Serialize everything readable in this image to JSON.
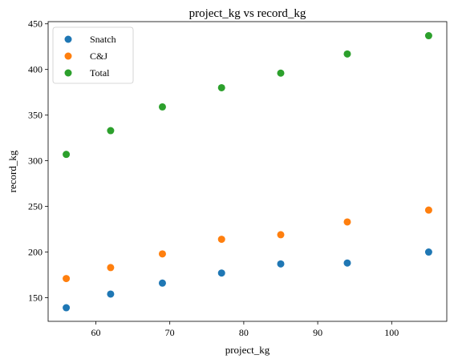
{
  "chart_data": {
    "type": "scatter",
    "title": "project_kg vs record_kg",
    "xlabel": "project_kg",
    "ylabel": "record_kg",
    "xlim": [
      53.55,
      107.45
    ],
    "ylim": [
      124.1,
      452.4
    ],
    "xticks": [
      60,
      70,
      80,
      90,
      100
    ],
    "yticks": [
      150,
      200,
      250,
      300,
      350,
      400,
      450
    ],
    "grid": false,
    "legend_position": "top-left",
    "x": [
      56,
      62,
      69,
      77,
      85,
      94,
      105
    ],
    "series": [
      {
        "name": "Snatch",
        "color": "#1f77b4",
        "values": [
          139,
          154,
          166,
          177,
          187,
          188,
          200
        ]
      },
      {
        "name": "C&J",
        "color": "#ff7f0e",
        "values": [
          171,
          183,
          198,
          214,
          219,
          233,
          246
        ]
      },
      {
        "name": "Total",
        "color": "#2ca02c",
        "values": [
          307,
          333,
          359,
          380,
          396,
          417,
          437
        ]
      }
    ]
  }
}
